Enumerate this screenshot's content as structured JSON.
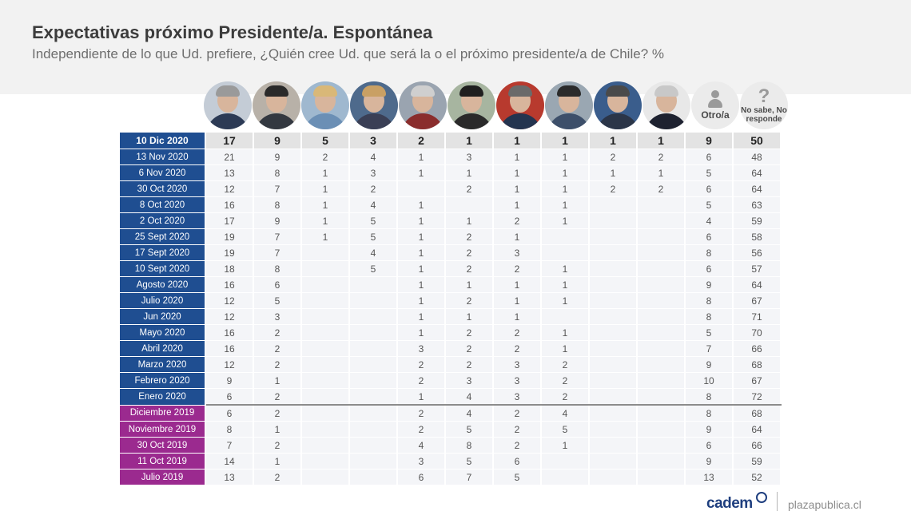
{
  "header": {
    "title": "Expectativas próximo Presidente/a. Espontánea",
    "subtitle": "Independiente de lo que Ud. prefiere, ¿Quién cree Ud. que será la o el próximo presidente/a de Chile? %"
  },
  "colors": {
    "row_2020": "#1f4e91",
    "row_2019": "#9b2a8f",
    "cell_bg": "#f4f5f8",
    "latest_bg": "#e3e3e3"
  },
  "candidates": [
    {
      "name": "candidate-1",
      "label": "",
      "icon": "portrait-icon",
      "hair": "#9a9a9a",
      "clothes": "#2c3a55",
      "bg": "#c4ccd6"
    },
    {
      "name": "candidate-2",
      "label": "",
      "icon": "portrait-icon",
      "hair": "#2a2a2a",
      "clothes": "#333840",
      "bg": "#b8b1a8"
    },
    {
      "name": "candidate-3",
      "label": "",
      "icon": "portrait-icon",
      "hair": "#d9b878",
      "clothes": "#6b8fb5",
      "bg": "#9fb8cf"
    },
    {
      "name": "candidate-4",
      "label": "",
      "icon": "portrait-icon",
      "hair": "#c9a064",
      "clothes": "#3a3f55",
      "bg": "#4e6a8c"
    },
    {
      "name": "candidate-5",
      "label": "",
      "icon": "portrait-icon",
      "hair": "#cfcfcf",
      "clothes": "#8a2d2d",
      "bg": "#9aa4b0"
    },
    {
      "name": "candidate-6",
      "label": "",
      "icon": "portrait-icon",
      "hair": "#1f1f1f",
      "clothes": "#2a2a2a",
      "bg": "#a7b5a0"
    },
    {
      "name": "candidate-7",
      "label": "",
      "icon": "portrait-icon",
      "hair": "#6a6a6a",
      "clothes": "#24344f",
      "bg": "#b83a2e"
    },
    {
      "name": "candidate-8",
      "label": "",
      "icon": "portrait-icon",
      "hair": "#2b2b2b",
      "clothes": "#3d4f6a",
      "bg": "#9aa7b2"
    },
    {
      "name": "candidate-9",
      "label": "",
      "icon": "portrait-icon",
      "hair": "#4a4a4a",
      "clothes": "#2b3548",
      "bg": "#3a5d8c"
    },
    {
      "name": "candidate-10",
      "label": "",
      "icon": "portrait-icon",
      "hair": "#c8c8c8",
      "clothes": "#1e2230",
      "bg": "#e8e8e8"
    },
    {
      "name": "other",
      "label": "Otro/a",
      "icon": "person-icon"
    },
    {
      "name": "no-answer",
      "label": "No sabe, No responde",
      "icon": "question-icon"
    }
  ],
  "chart_data": {
    "type": "table",
    "title": "Expectativas próximo Presidente/a. Espontánea",
    "subtitle": "Independiente de lo que Ud. prefiere, ¿Quién cree Ud. que será la o el próximo presidente/a de Chile? %",
    "columns": [
      "",
      "",
      "",
      "",
      "",
      "",
      "",
      "",
      "",
      "",
      "Otro/a",
      "No sabe, No responde"
    ],
    "rows": [
      {
        "label": "10 Dic 2020",
        "year": 2020,
        "values": [
          "17",
          "9",
          "5",
          "3",
          "2",
          "1",
          "1",
          "1",
          "1",
          "1",
          "9",
          "50"
        ]
      },
      {
        "label": "13 Nov 2020",
        "year": 2020,
        "values": [
          "21",
          "9",
          "2",
          "4",
          "1",
          "3",
          "1",
          "1",
          "2",
          "2",
          "6",
          "48"
        ]
      },
      {
        "label": "6 Nov 2020",
        "year": 2020,
        "values": [
          "13",
          "8",
          "1",
          "3",
          "1",
          "1",
          "1",
          "1",
          "1",
          "1",
          "5",
          "64"
        ]
      },
      {
        "label": "30 Oct 2020",
        "year": 2020,
        "values": [
          "12",
          "7",
          "1",
          "2",
          "",
          "2",
          "1",
          "1",
          "2",
          "2",
          "6",
          "64"
        ]
      },
      {
        "label": "8 Oct 2020",
        "year": 2020,
        "values": [
          "16",
          "8",
          "1",
          "4",
          "1",
          "",
          "1",
          "1",
          "",
          "",
          "5",
          "63"
        ]
      },
      {
        "label": "2 Oct 2020",
        "year": 2020,
        "values": [
          "17",
          "9",
          "1",
          "5",
          "1",
          "1",
          "2",
          "1",
          "",
          "",
          "4",
          "59"
        ]
      },
      {
        "label": "25 Sept 2020",
        "year": 2020,
        "values": [
          "19",
          "7",
          "1",
          "5",
          "1",
          "2",
          "1",
          "",
          "",
          "",
          "6",
          "58"
        ]
      },
      {
        "label": "17 Sept 2020",
        "year": 2020,
        "values": [
          "19",
          "7",
          "",
          "4",
          "1",
          "2",
          "3",
          "",
          "",
          "",
          "8",
          "56"
        ]
      },
      {
        "label": "10 Sept 2020",
        "year": 2020,
        "values": [
          "18",
          "8",
          "",
          "5",
          "1",
          "2",
          "2",
          "1",
          "",
          "",
          "6",
          "57"
        ]
      },
      {
        "label": "Agosto 2020",
        "year": 2020,
        "values": [
          "16",
          "6",
          "",
          "",
          "1",
          "1",
          "1",
          "1",
          "",
          "",
          "9",
          "64"
        ]
      },
      {
        "label": "Julio 2020",
        "year": 2020,
        "values": [
          "12",
          "5",
          "",
          "",
          "1",
          "2",
          "1",
          "1",
          "",
          "",
          "8",
          "67"
        ]
      },
      {
        "label": "Jun 2020",
        "year": 2020,
        "values": [
          "12",
          "3",
          "",
          "",
          "1",
          "1",
          "1",
          "",
          "",
          "",
          "8",
          "71"
        ]
      },
      {
        "label": "Mayo 2020",
        "year": 2020,
        "values": [
          "16",
          "2",
          "",
          "",
          "1",
          "2",
          "2",
          "1",
          "",
          "",
          "5",
          "70"
        ]
      },
      {
        "label": "Abril 2020",
        "year": 2020,
        "values": [
          "16",
          "2",
          "",
          "",
          "3",
          "2",
          "2",
          "1",
          "",
          "",
          "7",
          "66"
        ]
      },
      {
        "label": "Marzo 2020",
        "year": 2020,
        "values": [
          "12",
          "2",
          "",
          "",
          "2",
          "2",
          "3",
          "2",
          "",
          "",
          "9",
          "68"
        ]
      },
      {
        "label": "Febrero 2020",
        "year": 2020,
        "values": [
          "9",
          "1",
          "",
          "",
          "2",
          "3",
          "3",
          "2",
          "",
          "",
          "10",
          "67"
        ]
      },
      {
        "label": "Enero 2020",
        "year": 2020,
        "values": [
          "6",
          "2",
          "",
          "",
          "1",
          "4",
          "3",
          "2",
          "",
          "",
          "8",
          "72"
        ]
      },
      {
        "label": "Diciembre 2019",
        "year": 2019,
        "values": [
          "6",
          "2",
          "",
          "",
          "2",
          "4",
          "2",
          "4",
          "",
          "",
          "8",
          "68"
        ]
      },
      {
        "label": "Noviembre 2019",
        "year": 2019,
        "values": [
          "8",
          "1",
          "",
          "",
          "2",
          "5",
          "2",
          "5",
          "",
          "",
          "9",
          "64"
        ]
      },
      {
        "label": "30 Oct 2019",
        "year": 2019,
        "values": [
          "7",
          "2",
          "",
          "",
          "4",
          "8",
          "2",
          "1",
          "",
          "",
          "6",
          "66"
        ]
      },
      {
        "label": "11 Oct 2019",
        "year": 2019,
        "values": [
          "14",
          "1",
          "",
          "",
          "3",
          "5",
          "6",
          "",
          "",
          "",
          "9",
          "59"
        ]
      },
      {
        "label": "Julio 2019",
        "year": 2019,
        "values": [
          "13",
          "2",
          "",
          "",
          "6",
          "7",
          "5",
          "",
          "",
          "",
          "13",
          "52"
        ]
      }
    ]
  },
  "footer": {
    "logo": "cadem",
    "site": "plazapublica.cl"
  }
}
